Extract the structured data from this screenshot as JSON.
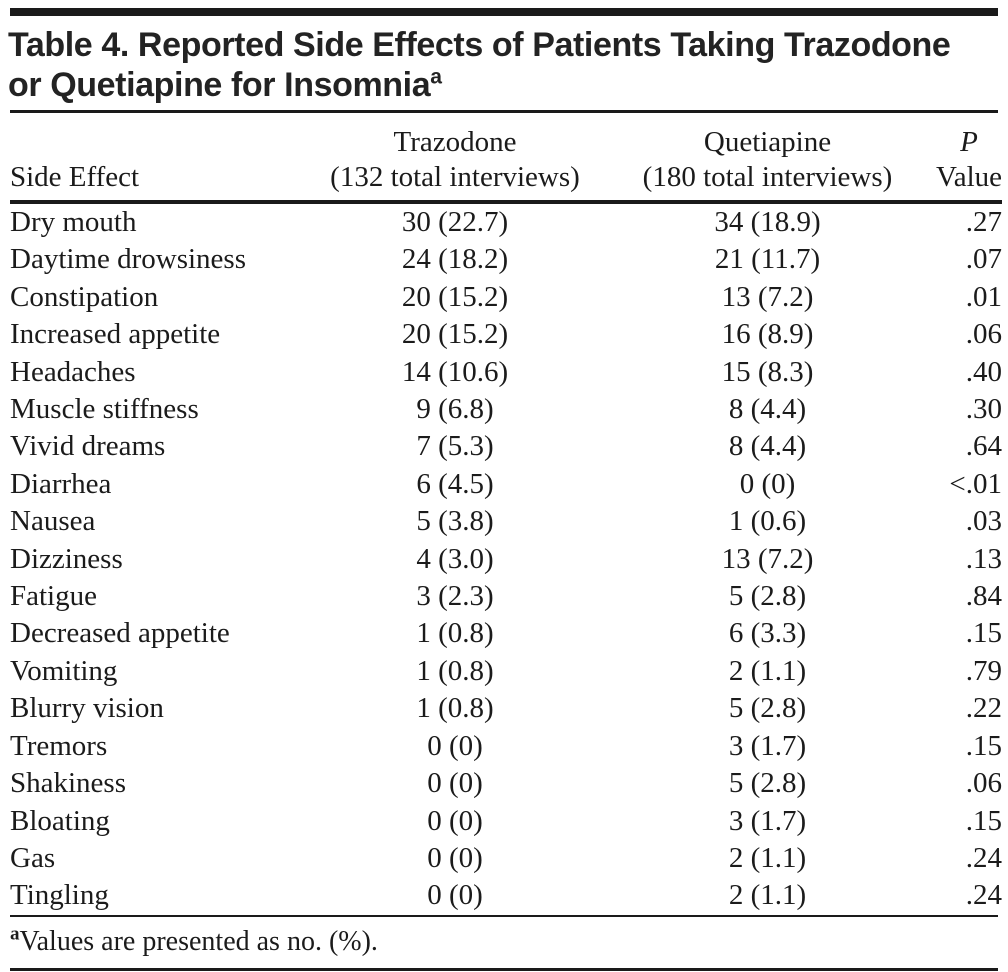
{
  "table": {
    "title_line1": "Table 4. Reported Side Effects of Patients Taking Trazodone",
    "title_line2": "or Quetiapine for Insomnia",
    "title_superscript": "a",
    "columns": {
      "side_effect": "Side Effect",
      "trazodone_line1": "Trazodone",
      "trazodone_line2": "(132 total interviews)",
      "quetiapine_line1": "Quetiapine",
      "quetiapine_line2": "(180 total interviews)",
      "p_line1": "P",
      "p_line2": "Value"
    },
    "rows": [
      {
        "side_effect": "Dry mouth",
        "trazodone": "30 (22.7)",
        "quetiapine": "34 (18.9)",
        "p": ".27"
      },
      {
        "side_effect": "Daytime drowsiness",
        "trazodone": "24 (18.2)",
        "quetiapine": "21 (11.7)",
        "p": ".07"
      },
      {
        "side_effect": "Constipation",
        "trazodone": "20 (15.2)",
        "quetiapine": "13 (7.2)",
        "p": ".01"
      },
      {
        "side_effect": "Increased appetite",
        "trazodone": "20 (15.2)",
        "quetiapine": "16 (8.9)",
        "p": ".06"
      },
      {
        "side_effect": "Headaches",
        "trazodone": "14 (10.6)",
        "quetiapine": "15 (8.3)",
        "p": ".40"
      },
      {
        "side_effect": "Muscle stiffness",
        "trazodone": "9 (6.8)",
        "quetiapine": "8 (4.4)",
        "p": ".30"
      },
      {
        "side_effect": "Vivid dreams",
        "trazodone": "7 (5.3)",
        "quetiapine": "8 (4.4)",
        "p": ".64"
      },
      {
        "side_effect": "Diarrhea",
        "trazodone": "6 (4.5)",
        "quetiapine": "0 (0)",
        "p": "<.01"
      },
      {
        "side_effect": "Nausea",
        "trazodone": "5 (3.8)",
        "quetiapine": "1 (0.6)",
        "p": ".03"
      },
      {
        "side_effect": "Dizziness",
        "trazodone": "4 (3.0)",
        "quetiapine": "13 (7.2)",
        "p": ".13"
      },
      {
        "side_effect": "Fatigue",
        "trazodone": "3 (2.3)",
        "quetiapine": "5 (2.8)",
        "p": ".84"
      },
      {
        "side_effect": "Decreased appetite",
        "trazodone": "1 (0.8)",
        "quetiapine": "6 (3.3)",
        "p": ".15"
      },
      {
        "side_effect": "Vomiting",
        "trazodone": "1 (0.8)",
        "quetiapine": "2 (1.1)",
        "p": ".79"
      },
      {
        "side_effect": "Blurry vision",
        "trazodone": "1 (0.8)",
        "quetiapine": "5 (2.8)",
        "p": ".22"
      },
      {
        "side_effect": "Tremors",
        "trazodone": "0 (0)",
        "quetiapine": "3 (1.7)",
        "p": ".15"
      },
      {
        "side_effect": "Shakiness",
        "trazodone": "0 (0)",
        "quetiapine": "5 (2.8)",
        "p": ".06"
      },
      {
        "side_effect": "Bloating",
        "trazodone": "0 (0)",
        "quetiapine": "3 (1.7)",
        "p": ".15"
      },
      {
        "side_effect": "Gas",
        "trazodone": "0 (0)",
        "quetiapine": "2 (1.1)",
        "p": ".24"
      },
      {
        "side_effect": "Tingling",
        "trazodone": "0 (0)",
        "quetiapine": "2 (1.1)",
        "p": ".24"
      }
    ],
    "footnote_superscript": "a",
    "footnote_text": "Values are presented as no. (%)."
  },
  "colors": {
    "ink": "#1a1a1a",
    "background": "#ffffff"
  }
}
